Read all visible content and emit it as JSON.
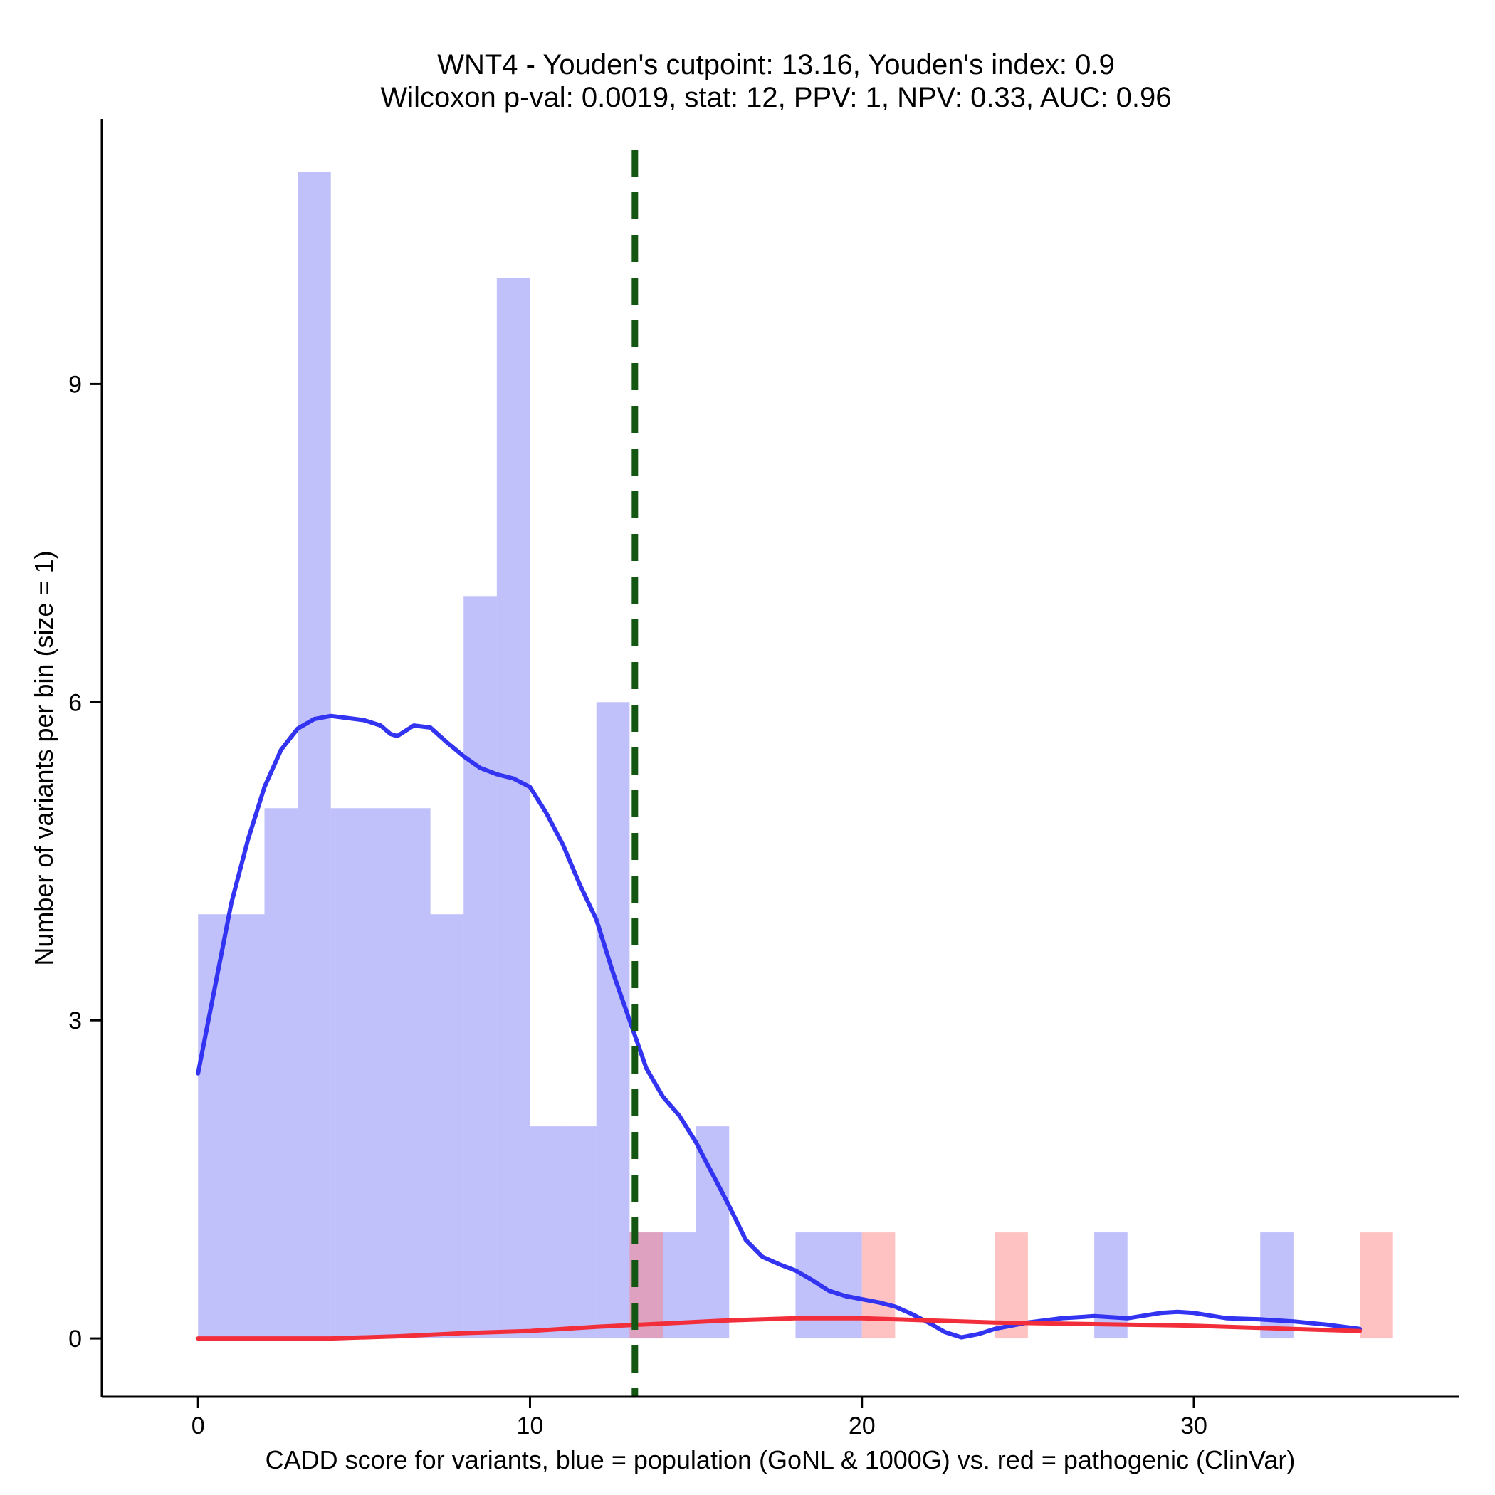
{
  "chart_data": {
    "type": "bar",
    "title": "WNT4 - Youden's cutpoint: 13.16, Youden's index: 0.9",
    "subtitle": "Wilcoxon p-val: 0.0019, stat: 12, PPV: 1, NPV: 0.33, AUC: 0.96",
    "xlabel": "CADD score for variants, blue = population (GoNL & 1000G) vs. red = pathogenic (ClinVar)",
    "ylabel": "Number of variants per bin (size = 1)",
    "xlim": [
      -2.9,
      38
    ],
    "ylim": [
      -0.55,
      11.5
    ],
    "x_ticks": [
      0,
      10,
      20,
      30
    ],
    "y_ticks": [
      0,
      3,
      6,
      9
    ],
    "grid": false,
    "bin_width": 1,
    "cutpoint": 13.16,
    "series": [
      {
        "color": "#7b7bf7",
        "opacity": 0.48,
        "bins": [
          {
            "x0": 0,
            "count": 4
          },
          {
            "x0": 1,
            "count": 4
          },
          {
            "x0": 2,
            "count": 5
          },
          {
            "x0": 3,
            "count": 11
          },
          {
            "x0": 4,
            "count": 5
          },
          {
            "x0": 5,
            "count": 5
          },
          {
            "x0": 6,
            "count": 5
          },
          {
            "x0": 7,
            "count": 4
          },
          {
            "x0": 8,
            "count": 7
          },
          {
            "x0": 9,
            "count": 10
          },
          {
            "x0": 10,
            "count": 2
          },
          {
            "x0": 11,
            "count": 2
          },
          {
            "x0": 12,
            "count": 6
          },
          {
            "x0": 13,
            "count": 1
          },
          {
            "x0": 14,
            "count": 1
          },
          {
            "x0": 15,
            "count": 2
          },
          {
            "x0": 18,
            "count": 1
          },
          {
            "x0": 19,
            "count": 1
          },
          {
            "x0": 27,
            "count": 1
          },
          {
            "x0": 32,
            "count": 1
          }
        ]
      },
      {
        "color": "#ff8080",
        "opacity": 0.48,
        "bins": [
          {
            "x0": 13,
            "count": 1
          },
          {
            "x0": 20,
            "count": 1
          },
          {
            "x0": 24,
            "count": 1
          },
          {
            "x0": 35,
            "count": 1
          }
        ]
      }
    ],
    "density_lines": [
      {
        "color": "#3333f2",
        "points": [
          [
            0,
            2.5
          ],
          [
            0.5,
            3.3
          ],
          [
            1,
            4.1
          ],
          [
            1.5,
            4.7
          ],
          [
            2,
            5.2
          ],
          [
            2.5,
            5.55
          ],
          [
            3,
            5.75
          ],
          [
            3.5,
            5.84
          ],
          [
            4,
            5.87
          ],
          [
            4.5,
            5.85
          ],
          [
            5,
            5.83
          ],
          [
            5.5,
            5.78
          ],
          [
            5.8,
            5.7
          ],
          [
            6,
            5.68
          ],
          [
            6.5,
            5.78
          ],
          [
            7,
            5.76
          ],
          [
            7.5,
            5.62
          ],
          [
            8,
            5.49
          ],
          [
            8.5,
            5.38
          ],
          [
            9,
            5.32
          ],
          [
            9.5,
            5.28
          ],
          [
            10,
            5.2
          ],
          [
            10.5,
            4.95
          ],
          [
            11,
            4.65
          ],
          [
            11.5,
            4.28
          ],
          [
            12,
            3.95
          ],
          [
            12.5,
            3.45
          ],
          [
            13,
            3.0
          ],
          [
            13.5,
            2.55
          ],
          [
            14,
            2.28
          ],
          [
            14.5,
            2.1
          ],
          [
            15,
            1.85
          ],
          [
            15.5,
            1.55
          ],
          [
            16,
            1.25
          ],
          [
            16.5,
            0.93
          ],
          [
            17,
            0.77
          ],
          [
            17.5,
            0.7
          ],
          [
            18,
            0.64
          ],
          [
            18.5,
            0.55
          ],
          [
            19,
            0.45
          ],
          [
            19.5,
            0.4
          ],
          [
            20,
            0.37
          ],
          [
            20.5,
            0.34
          ],
          [
            21,
            0.3
          ],
          [
            21.5,
            0.23
          ],
          [
            22,
            0.15
          ],
          [
            22.5,
            0.06
          ],
          [
            23,
            0.01
          ],
          [
            23.5,
            0.04
          ],
          [
            24,
            0.09
          ],
          [
            24.5,
            0.12
          ],
          [
            25,
            0.15
          ],
          [
            26,
            0.19
          ],
          [
            27,
            0.21
          ],
          [
            28,
            0.19
          ],
          [
            29,
            0.24
          ],
          [
            29.5,
            0.25
          ],
          [
            30,
            0.24
          ],
          [
            31,
            0.19
          ],
          [
            32,
            0.18
          ],
          [
            33,
            0.16
          ],
          [
            34,
            0.13
          ],
          [
            35,
            0.09
          ]
        ]
      },
      {
        "color": "#f22e3b",
        "points": [
          [
            0,
            0.0
          ],
          [
            2,
            0.0
          ],
          [
            4,
            0.0
          ],
          [
            6,
            0.02
          ],
          [
            8,
            0.05
          ],
          [
            10,
            0.07
          ],
          [
            12,
            0.11
          ],
          [
            14,
            0.14
          ],
          [
            16,
            0.17
          ],
          [
            18,
            0.19
          ],
          [
            20,
            0.19
          ],
          [
            22,
            0.17
          ],
          [
            24,
            0.15
          ],
          [
            26,
            0.14
          ],
          [
            28,
            0.13
          ],
          [
            30,
            0.12
          ],
          [
            32,
            0.1
          ],
          [
            34,
            0.08
          ],
          [
            35,
            0.07
          ]
        ]
      }
    ]
  }
}
